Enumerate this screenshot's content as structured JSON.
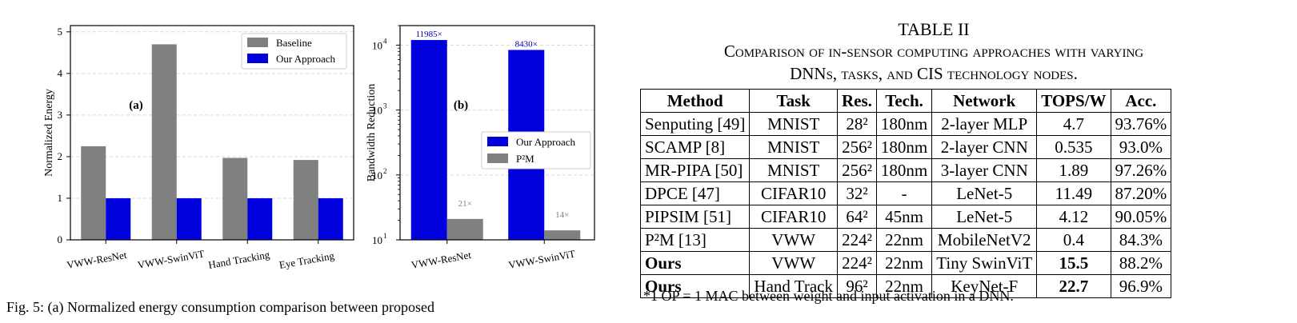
{
  "chart_data": [
    {
      "type": "bar",
      "panel_label": "(a)",
      "ylabel": "Normalized Energy",
      "categories": [
        "VWW-ResNet",
        "VWW-SwinViT",
        "Hand Tracking",
        "Eye Tracking"
      ],
      "series": [
        {
          "name": "Baseline",
          "values": [
            2.25,
            4.7,
            1.97,
            1.92
          ],
          "color": "#808080"
        },
        {
          "name": "Our Approach",
          "values": [
            1.0,
            1.0,
            1.0,
            1.0
          ],
          "color": "#0000dd"
        }
      ],
      "ylim": [
        0,
        5.15
      ],
      "yticks": [
        0,
        1,
        2,
        3,
        4,
        5
      ],
      "grid": true,
      "legend_position": "top-right"
    },
    {
      "type": "bar",
      "panel_label": "(b)",
      "ylabel": "Bandwidth Reduction",
      "yscale": "log",
      "categories": [
        "VWW-ResNet",
        "VWW-SwinViT"
      ],
      "series": [
        {
          "name": "Our Approach",
          "values": [
            11985,
            8430
          ],
          "labels": [
            "11985×",
            "8430×"
          ],
          "color": "#0000dd"
        },
        {
          "name": "P²M",
          "values": [
            21,
            14
          ],
          "labels": [
            "21×",
            "14×"
          ],
          "color": "#808080"
        }
      ],
      "ylim": [
        10,
        20000
      ],
      "yticks": [
        10,
        100,
        1000,
        10000
      ],
      "ytick_labels": [
        {
          "base": "10",
          "exp": "1"
        },
        {
          "base": "10",
          "exp": "2"
        },
        {
          "base": "10",
          "exp": "3"
        },
        {
          "base": "10",
          "exp": "4"
        }
      ],
      "grid": true,
      "legend_position": "center-right"
    }
  ],
  "figure_caption": "Fig. 5: (a) Normalized energy consumption comparison between proposed",
  "table": {
    "title": "TABLE II",
    "subtitle_line1": "Comparison of in-sensor computing approaches with varying",
    "subtitle_line2": "DNNs, tasks, and CIS technology nodes.",
    "headers": [
      "Method",
      "Task",
      "Res.",
      "Tech.",
      "Network",
      "TOPS/W",
      "Acc."
    ],
    "rows": [
      {
        "method": "Senputing [49]",
        "task": "MNIST",
        "res": "28²",
        "tech": "180nm",
        "network": "2-layer MLP",
        "tops": "4.7",
        "acc": "93.76%"
      },
      {
        "method": "SCAMP [8]",
        "task": "MNIST",
        "res": "256²",
        "tech": "180nm",
        "network": "2-layer CNN",
        "tops": "0.535",
        "acc": "93.0%"
      },
      {
        "method": "MR-PIPA [50]",
        "task": "MNIST",
        "res": "256²",
        "tech": "180nm",
        "network": "3-layer CNN",
        "tops": "1.89",
        "acc": "97.26%"
      },
      {
        "method": "DPCE [47]",
        "task": "CIFAR10",
        "res": "32²",
        "tech": "-",
        "network": "LeNet-5",
        "tops": "11.49",
        "acc": "87.20%"
      },
      {
        "method": "PIPSIM [51]",
        "task": "CIFAR10",
        "res": "64²",
        "tech": "45nm",
        "network": "LeNet-5",
        "tops": "4.12",
        "acc": "90.05%"
      },
      {
        "method": "P²M [13]",
        "task": "VWW",
        "res": "224²",
        "tech": "22nm",
        "network": "MobileNetV2",
        "tops": "0.4",
        "acc": "84.3%"
      },
      {
        "method": "Ours",
        "task": "VWW",
        "res": "224²",
        "tech": "22nm",
        "network": "Tiny SwinViT",
        "tops": "15.5",
        "acc": "88.2%"
      },
      {
        "method": "Ours",
        "task": "Hand Track",
        "res": "96²",
        "tech": "22nm",
        "network": "KeyNet-F",
        "tops": "22.7",
        "acc": "96.9%"
      }
    ],
    "footnote": "*1 OP = 1 MAC between weight and input activation in a DNN."
  }
}
